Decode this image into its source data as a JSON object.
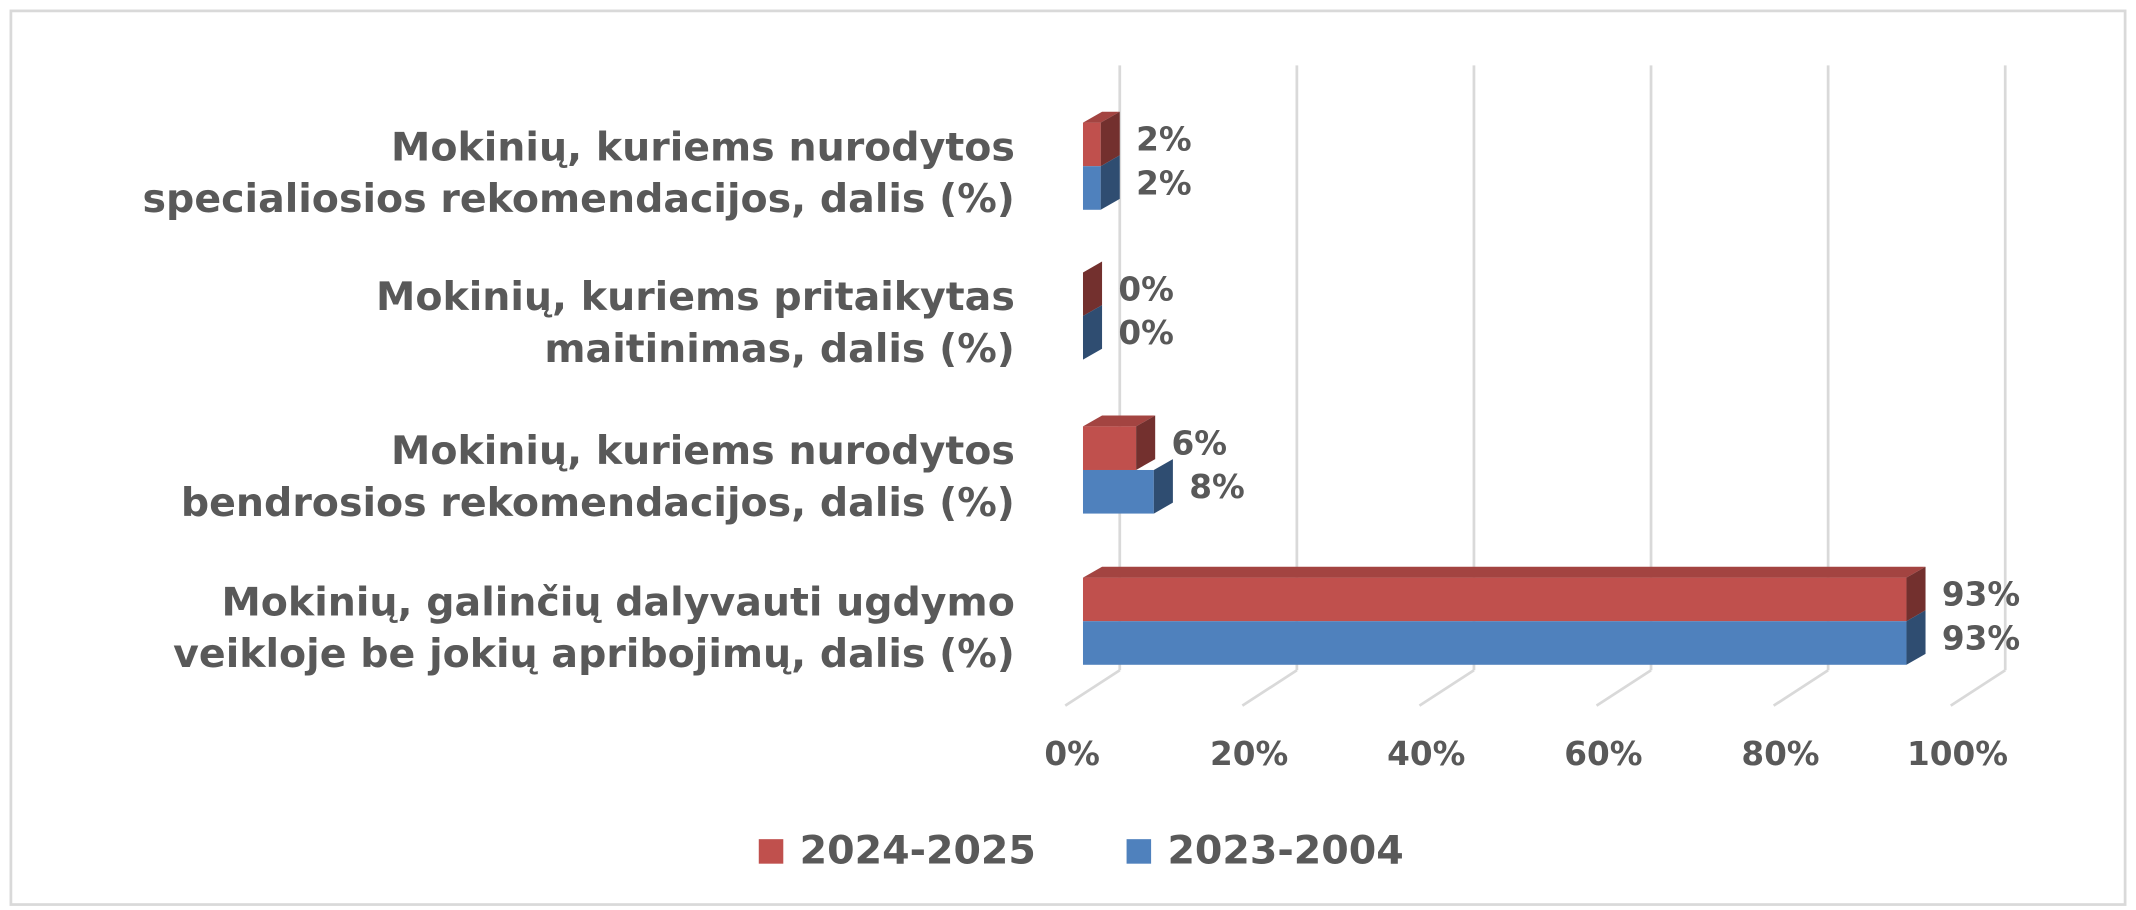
{
  "chart_data": {
    "type": "bar3d_horizontal",
    "categories": [
      "Mokinių, kuriems nurodytos specialiosios rekomendacijos, dalis (%)",
      "Mokinių, kuriems pritaikytas maitinimas, dalis (%)",
      "Mokinių, kuriems nurodytos bendrosios rekomendacijos, dalis (%)",
      "Mokinių, galinčių dalyvauti ugdymo veikloje be jokių apribojimų, dalis (%)"
    ],
    "category_lines": [
      [
        "Mokinių, kuriems nurodytos",
        "specialiosios rekomendacijos, dalis (%)"
      ],
      [
        "Mokinių, kuriems pritaikytas",
        "maitinimas, dalis (%)"
      ],
      [
        "Mokinių, kuriems nurodytos",
        "bendrosios rekomendacijos, dalis (%)"
      ],
      [
        "Mokinių, galinčių dalyvauti ugdymo",
        "veikloje be jokių apribojimų, dalis (%)"
      ]
    ],
    "series": [
      {
        "name": "2024-2025",
        "color": "#c0504d",
        "values": [
          2,
          0,
          6,
          93
        ],
        "value_labels": [
          "2%",
          "0%",
          "6%",
          "93%"
        ]
      },
      {
        "name": "2023-2004",
        "color": "#4f81bd",
        "values": [
          2,
          0,
          8,
          93
        ],
        "value_labels": [
          "2%",
          "0%",
          "8%",
          "93%"
        ]
      }
    ],
    "xlim": [
      0,
      100
    ],
    "xticks": [
      {
        "value": 0,
        "label": "0%"
      },
      {
        "value": 20,
        "label": "20%"
      },
      {
        "value": 40,
        "label": "40%"
      },
      {
        "value": 60,
        "label": "60%"
      },
      {
        "value": 80,
        "label": "80%"
      },
      {
        "value": 100,
        "label": "100%"
      }
    ],
    "grid": true,
    "legend": "bottom"
  }
}
